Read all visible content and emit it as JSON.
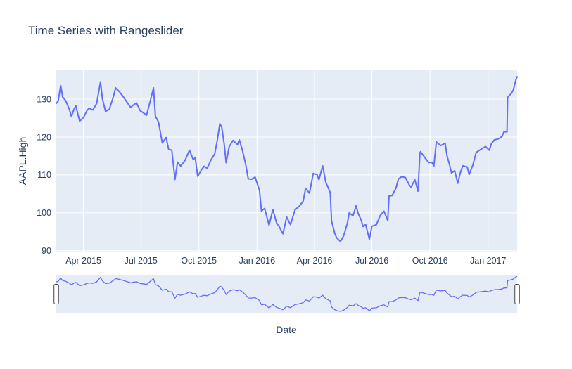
{
  "title": "Time Series with Rangeslider",
  "colors": {
    "line": "#636efa",
    "plot_background": "#e5ecf6",
    "gridline": "#ffffff",
    "text": "#2a3f5f",
    "handle_fill": "#ffffff",
    "handle_border": "#444444",
    "page_background": "#ffffff"
  },
  "chart_data": {
    "type": "line",
    "title": "Time Series with Rangeslider",
    "xlabel": "Date",
    "ylabel": "AAPL.High",
    "grid": true,
    "legend_visible": false,
    "x_range": [
      "2015-02-17",
      "2017-02-16"
    ],
    "y_range": [
      89.6,
      137.6
    ],
    "x_ticks": [
      {
        "date": "2015-04-01",
        "label": "Apr 2015"
      },
      {
        "date": "2015-07-01",
        "label": "Jul 2015"
      },
      {
        "date": "2015-10-01",
        "label": "Oct 2015"
      },
      {
        "date": "2016-01-01",
        "label": "Jan 2016"
      },
      {
        "date": "2016-04-01",
        "label": "Apr 2016"
      },
      {
        "date": "2016-07-01",
        "label": "Jul 2016"
      },
      {
        "date": "2016-10-01",
        "label": "Oct 2016"
      },
      {
        "date": "2017-01-01",
        "label": "Jan 2017"
      }
    ],
    "y_ticks": [
      {
        "value": 90,
        "label": "90"
      },
      {
        "value": 100,
        "label": "100"
      },
      {
        "value": 110,
        "label": "110"
      },
      {
        "value": 120,
        "label": "120"
      },
      {
        "value": 130,
        "label": "130"
      }
    ],
    "rangeslider": {
      "visible": true,
      "y_range": [
        92.46,
        135.9
      ],
      "handles": [
        "left",
        "right"
      ]
    },
    "series": [
      {
        "name": "AAPL.High",
        "x": [
          "2015-02-17",
          "2015-02-20",
          "2015-02-24",
          "2015-02-27",
          "2015-03-04",
          "2015-03-10",
          "2015-03-13",
          "2015-03-17",
          "2015-03-20",
          "2015-03-26",
          "2015-04-01",
          "2015-04-07",
          "2015-04-10",
          "2015-04-16",
          "2015-04-22",
          "2015-04-28",
          "2015-05-01",
          "2015-05-06",
          "2015-05-12",
          "2015-05-19",
          "2015-05-22",
          "2015-05-28",
          "2015-06-03",
          "2015-06-09",
          "2015-06-15",
          "2015-06-18",
          "2015-06-24",
          "2015-06-30",
          "2015-07-07",
          "2015-07-10",
          "2015-07-16",
          "2015-07-21",
          "2015-07-24",
          "2015-07-29",
          "2015-08-04",
          "2015-08-10",
          "2015-08-14",
          "2015-08-19",
          "2015-08-24",
          "2015-08-28",
          "2015-09-02",
          "2015-09-09",
          "2015-09-16",
          "2015-09-22",
          "2015-09-25",
          "2015-09-29",
          "2015-10-05",
          "2015-10-09",
          "2015-10-14",
          "2015-10-20",
          "2015-10-26",
          "2015-10-30",
          "2015-11-03",
          "2015-11-06",
          "2015-11-10",
          "2015-11-13",
          "2015-11-18",
          "2015-11-24",
          "2015-12-01",
          "2015-12-04",
          "2015-12-09",
          "2015-12-14",
          "2015-12-18",
          "2015-12-23",
          "2015-12-29",
          "2016-01-05",
          "2016-01-08",
          "2016-01-13",
          "2016-01-20",
          "2016-01-26",
          "2016-02-01",
          "2016-02-05",
          "2016-02-11",
          "2016-02-17",
          "2016-02-23",
          "2016-03-01",
          "2016-03-08",
          "2016-03-14",
          "2016-03-18",
          "2016-03-24",
          "2016-03-30",
          "2016-04-05",
          "2016-04-08",
          "2016-04-14",
          "2016-04-19",
          "2016-04-22",
          "2016-04-26",
          "2016-04-28",
          "2016-05-03",
          "2016-05-06",
          "2016-05-12",
          "2016-05-17",
          "2016-05-23",
          "2016-05-26",
          "2016-06-01",
          "2016-06-06",
          "2016-06-09",
          "2016-06-14",
          "2016-06-17",
          "2016-06-21",
          "2016-06-27",
          "2016-07-01",
          "2016-07-08",
          "2016-07-14",
          "2016-07-20",
          "2016-07-26",
          "2016-07-28",
          "2016-08-02",
          "2016-08-08",
          "2016-08-12",
          "2016-08-17",
          "2016-08-23",
          "2016-08-29",
          "2016-09-01",
          "2016-09-07",
          "2016-09-12",
          "2016-09-15",
          "2016-09-16",
          "2016-09-22",
          "2016-09-29",
          "2016-10-04",
          "2016-10-07",
          "2016-10-11",
          "2016-10-18",
          "2016-10-25",
          "2016-10-28",
          "2016-11-01",
          "2016-11-04",
          "2016-11-09",
          "2016-11-14",
          "2016-11-18",
          "2016-11-22",
          "2016-11-29",
          "2016-12-02",
          "2016-12-08",
          "2016-12-13",
          "2016-12-20",
          "2016-12-28",
          "2017-01-03",
          "2017-01-06",
          "2017-01-11",
          "2017-01-17",
          "2017-01-23",
          "2017-01-26",
          "2017-01-31",
          "2017-02-01",
          "2017-02-07",
          "2017-02-10",
          "2017-02-14",
          "2017-02-16"
        ],
        "y": [
          128.88,
          129.5,
          133.6,
          130.57,
          129.56,
          127.21,
          125.4,
          127.32,
          128.25,
          124.18,
          125.12,
          127.1,
          127.6,
          127.13,
          128.87,
          134.54,
          130.13,
          126.75,
          127.32,
          130.98,
          132.97,
          131.95,
          130.66,
          129.21,
          127.77,
          128.31,
          129.0,
          126.94,
          126.15,
          125.76,
          129.62,
          132.97,
          125.5,
          123.91,
          118.44,
          119.87,
          116.78,
          116.52,
          108.8,
          113.36,
          112.34,
          113.83,
          116.53,
          114.02,
          114.62,
          109.63,
          111.37,
          112.28,
          111.73,
          113.94,
          115.58,
          119.09,
          123.49,
          122.69,
          118.07,
          113.23,
          117.49,
          119.09,
          118.01,
          119.25,
          116.38,
          112.8,
          109.0,
          108.85,
          109.43,
          105.85,
          100.5,
          101.19,
          96.76,
          100.88,
          97.34,
          96.4,
          94.5,
          98.89,
          96.91,
          100.77,
          101.76,
          103.05,
          106.5,
          105.18,
          110.42,
          110.1,
          108.77,
          112.39,
          108.0,
          106.93,
          105.3,
          97.88,
          94.66,
          93.45,
          92.46,
          93.88,
          97.19,
          100.0,
          99.25,
          101.89,
          99.93,
          98.05,
          96.4,
          96.91,
          93.05,
          96.47,
          96.89,
          99.3,
          100.46,
          97.97,
          104.45,
          104.55,
          106.5,
          108.94,
          109.54,
          109.32,
          107.37,
          106.8,
          108.76,
          105.72,
          115.73,
          116.13,
          114.79,
          113.25,
          113.34,
          112.3,
          118.69,
          117.76,
          118.36,
          115.03,
          112.63,
          110.53,
          111.09,
          107.81,
          110.54,
          112.42,
          112.09,
          110.09,
          112.68,
          115.92,
          116.7,
          117.5,
          116.51,
          118.16,
          119.25,
          119.5,
          120.1,
          121.39,
          121.36,
          130.49,
          131.53,
          132.42,
          135.09,
          135.9
        ]
      }
    ]
  }
}
